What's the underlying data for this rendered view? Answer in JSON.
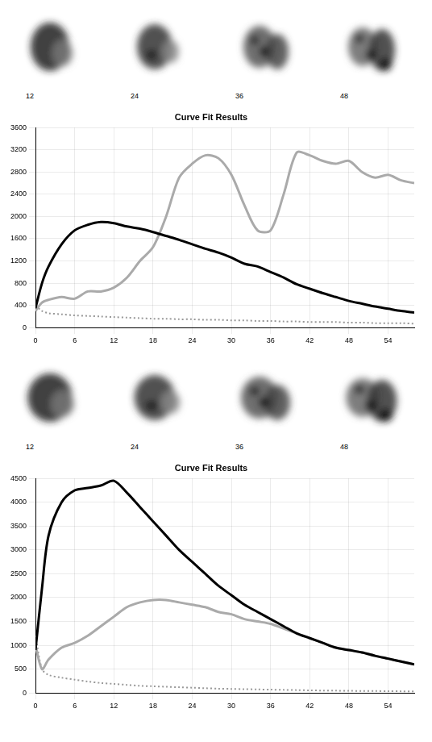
{
  "scan_rows": [
    [
      "12",
      "24",
      "36",
      "48"
    ],
    [
      "12",
      "24",
      "36",
      "48"
    ]
  ],
  "chart_data": [
    {
      "type": "line",
      "title": "Curve Fit Results",
      "x": [
        0,
        1,
        2,
        4,
        6,
        8,
        10,
        12,
        14,
        16,
        18,
        20,
        22,
        24,
        26,
        28,
        30,
        32,
        34,
        36,
        38,
        40,
        42,
        44,
        46,
        48,
        50,
        52,
        54,
        56,
        58
      ],
      "series": [
        {
          "color": "#000000",
          "line_style": "solid",
          "marker": "none",
          "values": [
            350,
            800,
            1100,
            1500,
            1750,
            1850,
            1900,
            1880,
            1820,
            1780,
            1720,
            1650,
            1580,
            1500,
            1420,
            1350,
            1260,
            1150,
            1100,
            1000,
            900,
            780,
            700,
            620,
            550,
            480,
            430,
            380,
            340,
            300,
            270
          ]
        },
        {
          "color": "#aaaaaa",
          "line_style": "solid",
          "marker": "none",
          "values": [
            300,
            450,
            500,
            550,
            520,
            650,
            650,
            720,
            900,
            1200,
            1450,
            2000,
            2700,
            2950,
            3100,
            3050,
            2750,
            2200,
            1750,
            1750,
            2400,
            3150,
            3100,
            3000,
            2950,
            3000,
            2800,
            2700,
            2750,
            2650,
            2600
          ]
        },
        {
          "color": "#999999",
          "line_style": "dotted",
          "marker": "none",
          "values": [
            400,
            300,
            260,
            240,
            220,
            210,
            200,
            190,
            180,
            170,
            160,
            160,
            150,
            150,
            140,
            140,
            130,
            130,
            120,
            120,
            110,
            110,
            100,
            100,
            100,
            90,
            90,
            80,
            80,
            80,
            70
          ]
        }
      ],
      "xlim": [
        0,
        58
      ],
      "xticks": [
        0,
        6,
        12,
        18,
        24,
        30,
        36,
        42,
        48,
        54
      ],
      "ylim": [
        0,
        3600
      ],
      "yticks": [
        0,
        400,
        800,
        1200,
        1600,
        2000,
        2400,
        2800,
        3200,
        3600
      ],
      "grid": true
    },
    {
      "type": "line",
      "title": "Curve Fit Results",
      "x": [
        0,
        1,
        2,
        4,
        6,
        8,
        10,
        12,
        14,
        16,
        18,
        20,
        22,
        24,
        26,
        28,
        30,
        32,
        34,
        36,
        38,
        40,
        42,
        44,
        46,
        48,
        50,
        52,
        54,
        56,
        58
      ],
      "series": [
        {
          "color": "#000000",
          "line_style": "solid",
          "marker": "none",
          "values": [
            900,
            2200,
            3300,
            4000,
            4250,
            4300,
            4350,
            4450,
            4200,
            3900,
            3600,
            3300,
            3000,
            2750,
            2500,
            2250,
            2050,
            1850,
            1700,
            1550,
            1400,
            1250,
            1150,
            1050,
            950,
            900,
            850,
            780,
            720,
            660,
            600
          ]
        },
        {
          "color": "#aaaaaa",
          "line_style": "solid",
          "marker": "none",
          "values": [
            1000,
            500,
            700,
            950,
            1050,
            1200,
            1400,
            1600,
            1800,
            1900,
            1950,
            1950,
            1900,
            1850,
            1800,
            1700,
            1650,
            1550,
            1500,
            1450,
            1350,
            1250,
            1150,
            1050,
            950,
            900,
            850,
            780,
            720,
            660,
            600
          ]
        },
        {
          "color": "#999999",
          "line_style": "dotted",
          "marker": "none",
          "values": [
            1200,
            500,
            380,
            320,
            280,
            240,
            210,
            190,
            170,
            150,
            140,
            130,
            120,
            110,
            100,
            90,
            85,
            80,
            75,
            70,
            65,
            60,
            55,
            50,
            48,
            45,
            42,
            40,
            38,
            35,
            32
          ]
        }
      ],
      "xlim": [
        0,
        58
      ],
      "xticks": [
        0,
        6,
        12,
        18,
        24,
        30,
        36,
        42,
        48,
        54
      ],
      "ylim": [
        0,
        4500
      ],
      "yticks": [
        0,
        500,
        1000,
        1500,
        2000,
        2500,
        3000,
        3500,
        4000,
        4500
      ],
      "grid": true
    }
  ]
}
